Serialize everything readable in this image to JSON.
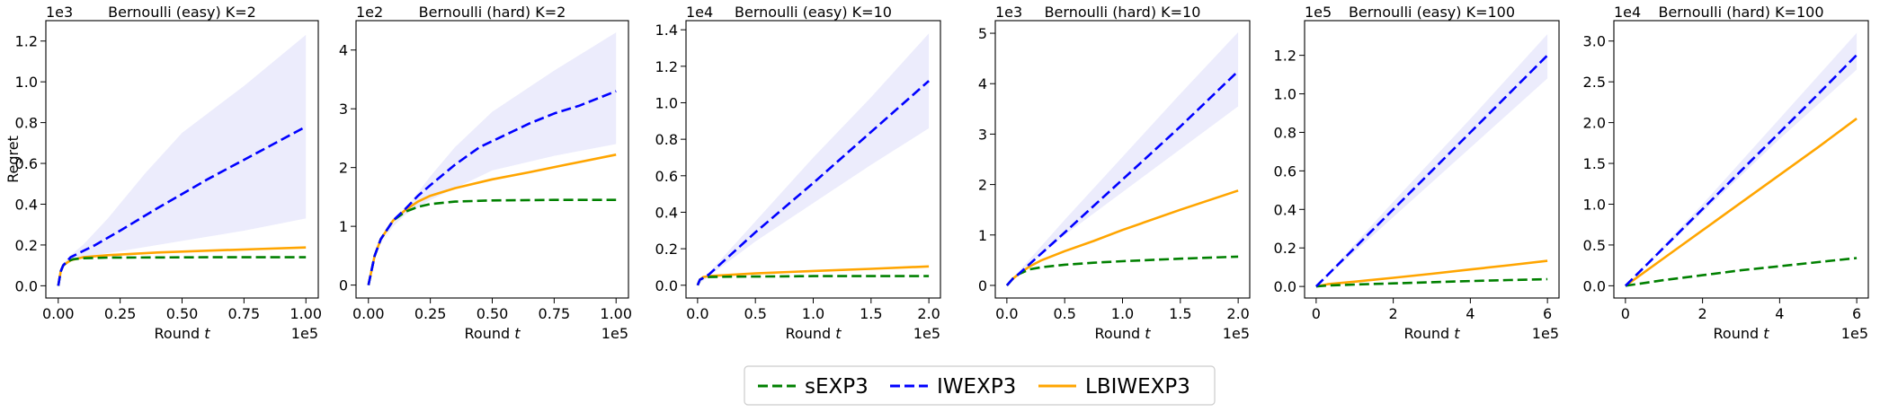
{
  "legend": {
    "placement": "bottom-center",
    "entries": [
      {
        "name": "sEXP3",
        "color": "#008000",
        "dashed": true
      },
      {
        "name": "IWEXP3",
        "color": "#0000ff",
        "dashed": true
      },
      {
        "name": "LBIWEXP3",
        "color": "#ffa500",
        "dashed": false
      }
    ]
  },
  "colors": {
    "band": "#ececfc",
    "green": "#008000",
    "blue": "#0000ff",
    "orange": "#ffa500"
  },
  "chart_data": [
    {
      "type": "line",
      "title": "Bernoulli (easy) K=2",
      "xlabel": "Round t",
      "ylabel": "Regret",
      "x_exponent": "1e5",
      "y_exponent": "1e3",
      "xlim": [
        -0.05,
        1.05
      ],
      "ylim": [
        -0.06,
        1.3
      ],
      "xticks": [
        0.0,
        0.25,
        0.5,
        0.75,
        1.0
      ],
      "xticklabels": [
        "0.00",
        "0.25",
        "0.50",
        "0.75",
        "1.00"
      ],
      "yticks": [
        0.0,
        0.2,
        0.4,
        0.6,
        0.8,
        1.0,
        1.2
      ],
      "yticklabels": [
        "0.0",
        "0.2",
        "0.4",
        "0.6",
        "0.8",
        "1.0",
        "1.2"
      ],
      "grid": false,
      "band": {
        "series": "IWEXP3",
        "x": [
          0,
          0.02,
          0.05,
          0.1,
          0.2,
          0.35,
          0.5,
          0.75,
          1.0
        ],
        "upper": [
          0.05,
          0.11,
          0.15,
          0.2,
          0.33,
          0.55,
          0.75,
          0.98,
          1.23
        ],
        "lower": [
          0.05,
          0.09,
          0.12,
          0.14,
          0.16,
          0.19,
          0.22,
          0.27,
          0.33
        ]
      },
      "series": [
        {
          "name": "sEXP3",
          "x": [
            0,
            0.01,
            0.02,
            0.04,
            0.06,
            0.1,
            0.2,
            0.4,
            0.6,
            0.8,
            1.0
          ],
          "values": [
            0.0,
            0.07,
            0.1,
            0.12,
            0.13,
            0.135,
            0.138,
            0.139,
            0.14,
            0.14,
            0.14
          ]
        },
        {
          "name": "IWEXP3",
          "x": [
            0,
            0.01,
            0.02,
            0.05,
            0.1,
            0.15,
            0.25,
            0.4,
            0.6,
            0.8,
            1.0
          ],
          "values": [
            0.0,
            0.07,
            0.1,
            0.14,
            0.17,
            0.2,
            0.27,
            0.38,
            0.52,
            0.65,
            0.78
          ]
        },
        {
          "name": "LBIWEXP3",
          "x": [
            0,
            0.01,
            0.02,
            0.05,
            0.1,
            0.2,
            0.4,
            0.6,
            0.8,
            1.0
          ],
          "values": [
            0.0,
            0.07,
            0.1,
            0.125,
            0.14,
            0.15,
            0.163,
            0.172,
            0.18,
            0.188
          ]
        }
      ]
    },
    {
      "type": "line",
      "title": "Bernoulli (hard) K=2",
      "xlabel": "Round t",
      "ylabel": "",
      "x_exponent": "1e5",
      "y_exponent": "1e2",
      "xlim": [
        -0.05,
        1.05
      ],
      "ylim": [
        -0.22,
        4.5
      ],
      "xticks": [
        0.0,
        0.25,
        0.5,
        0.75,
        1.0
      ],
      "xticklabels": [
        "0.00",
        "0.25",
        "0.50",
        "0.75",
        "1.00"
      ],
      "yticks": [
        0,
        1,
        2,
        3,
        4
      ],
      "yticklabels": [
        "0",
        "1",
        "2",
        "3",
        "4"
      ],
      "grid": false,
      "band": {
        "series": "IWEXP3",
        "x": [
          0,
          0.05,
          0.1,
          0.15,
          0.25,
          0.35,
          0.5,
          0.75,
          1.0
        ],
        "upper": [
          0.0,
          0.7,
          1.05,
          1.3,
          1.85,
          2.35,
          2.95,
          3.65,
          4.3
        ],
        "lower": [
          0.0,
          0.7,
          1.0,
          1.2,
          1.45,
          1.65,
          1.95,
          2.2,
          2.4
        ]
      },
      "series": [
        {
          "name": "sEXP3",
          "x": [
            0,
            0.025,
            0.05,
            0.1,
            0.15,
            0.2,
            0.25,
            0.35,
            0.5,
            0.75,
            1.0
          ],
          "values": [
            0.0,
            0.5,
            0.78,
            1.1,
            1.25,
            1.33,
            1.38,
            1.42,
            1.44,
            1.45,
            1.45
          ]
        },
        {
          "name": "IWEXP3",
          "x": [
            0,
            0.025,
            0.05,
            0.1,
            0.15,
            0.2,
            0.25,
            0.35,
            0.45,
            0.55,
            0.65,
            0.75,
            0.85,
            1.0
          ],
          "values": [
            0.0,
            0.5,
            0.78,
            1.1,
            1.3,
            1.52,
            1.7,
            2.05,
            2.35,
            2.55,
            2.75,
            2.92,
            3.05,
            3.3
          ]
        },
        {
          "name": "LBIWEXP3",
          "x": [
            0,
            0.025,
            0.05,
            0.1,
            0.15,
            0.2,
            0.25,
            0.35,
            0.5,
            0.65,
            0.8,
            1.0
          ],
          "values": [
            0.0,
            0.5,
            0.78,
            1.1,
            1.28,
            1.42,
            1.52,
            1.65,
            1.8,
            1.92,
            2.05,
            2.22
          ]
        }
      ]
    },
    {
      "type": "line",
      "title": "Bernoulli (easy) K=10",
      "xlabel": "Round t",
      "ylabel": "",
      "x_exponent": "1e5",
      "y_exponent": "1e4",
      "xlim": [
        -0.1,
        2.1
      ],
      "ylim": [
        -0.07,
        1.45
      ],
      "xticks": [
        0.0,
        0.5,
        1.0,
        1.5,
        2.0
      ],
      "xticklabels": [
        "0.0",
        "0.5",
        "1.0",
        "1.5",
        "2.0"
      ],
      "yticks": [
        0.0,
        0.2,
        0.4,
        0.6,
        0.8,
        1.0,
        1.2,
        1.4
      ],
      "yticklabels": [
        "0.0",
        "0.2",
        "0.4",
        "0.6",
        "0.8",
        "1.0",
        "1.2",
        "1.4"
      ],
      "grid": false,
      "band": {
        "series": "IWEXP3",
        "x": [
          0,
          0.1,
          0.5,
          1.0,
          1.5,
          2.0
        ],
        "upper": [
          0.0,
          0.07,
          0.35,
          0.7,
          1.03,
          1.38
        ],
        "lower": [
          0.0,
          0.05,
          0.24,
          0.45,
          0.66,
          0.86
        ]
      },
      "series": [
        {
          "name": "sEXP3",
          "x": [
            0,
            0.02,
            0.05,
            0.1,
            0.3,
            0.6,
            1.0,
            1.5,
            2.0
          ],
          "values": [
            0.0,
            0.03,
            0.04,
            0.045,
            0.047,
            0.048,
            0.05,
            0.05,
            0.05
          ]
        },
        {
          "name": "IWEXP3",
          "x": [
            0,
            0.02,
            0.05,
            0.1,
            0.5,
            1.0,
            1.5,
            2.0
          ],
          "values": [
            0.0,
            0.03,
            0.04,
            0.06,
            0.29,
            0.56,
            0.84,
            1.12
          ]
        },
        {
          "name": "LBIWEXP3",
          "x": [
            0,
            0.02,
            0.05,
            0.1,
            0.5,
            1.0,
            1.5,
            2.0
          ],
          "values": [
            0.0,
            0.03,
            0.045,
            0.05,
            0.065,
            0.078,
            0.09,
            0.103
          ]
        }
      ]
    },
    {
      "type": "line",
      "title": "Bernoulli (hard) K=10",
      "xlabel": "Round t",
      "ylabel": "",
      "x_exponent": "1e5",
      "y_exponent": "1e3",
      "xlim": [
        -0.1,
        2.1
      ],
      "ylim": [
        -0.25,
        5.25
      ],
      "xticks": [
        0.0,
        0.5,
        1.0,
        1.5,
        2.0
      ],
      "xticklabels": [
        "0.0",
        "0.5",
        "1.0",
        "1.5",
        "2.0"
      ],
      "yticks": [
        0,
        1,
        2,
        3,
        4,
        5
      ],
      "yticklabels": [
        "0",
        "1",
        "2",
        "3",
        "4",
        "5"
      ],
      "grid": false,
      "band": {
        "series": "IWEXP3",
        "x": [
          0,
          0.1,
          0.5,
          1.0,
          1.5,
          2.0
        ],
        "upper": [
          0.0,
          0.27,
          1.3,
          2.55,
          3.8,
          5.02
        ],
        "lower": [
          0.0,
          0.22,
          1.0,
          1.85,
          2.7,
          3.55
        ]
      },
      "series": [
        {
          "name": "sEXP3",
          "x": [
            0,
            0.05,
            0.1,
            0.2,
            0.3,
            0.5,
            0.75,
            1.0,
            1.5,
            2.0
          ],
          "values": [
            0.0,
            0.13,
            0.22,
            0.32,
            0.36,
            0.41,
            0.45,
            0.48,
            0.53,
            0.57
          ]
        },
        {
          "name": "IWEXP3",
          "x": [
            0,
            0.05,
            0.1,
            0.2,
            0.5,
            1.0,
            1.5,
            2.0
          ],
          "values": [
            0.0,
            0.13,
            0.22,
            0.43,
            1.05,
            2.1,
            3.15,
            4.25
          ]
        },
        {
          "name": "LBIWEXP3",
          "x": [
            0,
            0.05,
            0.1,
            0.2,
            0.3,
            0.5,
            0.75,
            1.0,
            1.5,
            2.0
          ],
          "values": [
            0.0,
            0.13,
            0.22,
            0.38,
            0.5,
            0.68,
            0.88,
            1.1,
            1.5,
            1.88
          ]
        }
      ]
    },
    {
      "type": "line",
      "title": "Bernoulli (easy) K=100",
      "xlabel": "Round t",
      "ylabel": "",
      "x_exponent": "1e5",
      "y_exponent": "1e5",
      "xlim": [
        -0.3,
        6.3
      ],
      "ylim": [
        -0.06,
        1.38
      ],
      "xticks": [
        0,
        2,
        4,
        6
      ],
      "xticklabels": [
        "0",
        "2",
        "4",
        "6"
      ],
      "yticks": [
        0.0,
        0.2,
        0.4,
        0.6,
        0.8,
        1.0,
        1.2
      ],
      "yticklabels": [
        "0.0",
        "0.2",
        "0.4",
        "0.6",
        "0.8",
        "1.0",
        "1.2"
      ],
      "grid": false,
      "band": {
        "series": "IWEXP3",
        "x": [
          0,
          2,
          4,
          6
        ],
        "upper": [
          0.0,
          0.44,
          0.87,
          1.31
        ],
        "lower": [
          0.0,
          0.36,
          0.72,
          1.08
        ]
      },
      "series": [
        {
          "name": "sEXP3",
          "x": [
            0,
            0.3,
            1,
            2,
            3,
            4,
            5,
            6
          ],
          "values": [
            0.0,
            0.005,
            0.01,
            0.016,
            0.022,
            0.028,
            0.033,
            0.038
          ]
        },
        {
          "name": "IWEXP3",
          "x": [
            0,
            1,
            2,
            3,
            4,
            5,
            6
          ],
          "values": [
            0.0,
            0.2,
            0.4,
            0.6,
            0.8,
            1.0,
            1.2
          ]
        },
        {
          "name": "LBIWEXP3",
          "x": [
            0,
            0.3,
            1,
            2,
            3,
            4,
            5,
            6
          ],
          "values": [
            0.0,
            0.012,
            0.025,
            0.045,
            0.066,
            0.088,
            0.11,
            0.133
          ]
        }
      ]
    },
    {
      "type": "line",
      "title": "Bernoulli (hard) K=100",
      "xlabel": "Round t",
      "ylabel": "",
      "x_exponent": "1e5",
      "y_exponent": "1e4",
      "xlim": [
        -0.3,
        6.3
      ],
      "ylim": [
        -0.15,
        3.25
      ],
      "xticks": [
        0,
        2,
        4,
        6
      ],
      "xticklabels": [
        "0",
        "2",
        "4",
        "6"
      ],
      "yticks": [
        0.0,
        0.5,
        1.0,
        1.5,
        2.0,
        2.5,
        3.0
      ],
      "yticklabels": [
        "0.0",
        "0.5",
        "1.0",
        "1.5",
        "2.0",
        "2.5",
        "3.0"
      ],
      "grid": false,
      "band": {
        "series": "IWEXP3",
        "x": [
          0,
          2,
          4,
          6
        ],
        "upper": [
          0.0,
          1.0,
          2.05,
          3.1
        ],
        "lower": [
          0.0,
          0.9,
          1.8,
          2.65
        ]
      },
      "series": [
        {
          "name": "sEXP3",
          "x": [
            0,
            1,
            2,
            3,
            4,
            5,
            6
          ],
          "values": [
            0.0,
            0.07,
            0.13,
            0.19,
            0.24,
            0.29,
            0.34
          ]
        },
        {
          "name": "IWEXP3",
          "x": [
            0,
            1,
            2,
            3,
            4,
            5,
            6
          ],
          "values": [
            0.0,
            0.47,
            0.94,
            1.41,
            1.88,
            2.35,
            2.83
          ]
        },
        {
          "name": "LBIWEXP3",
          "x": [
            0,
            1,
            2,
            3,
            4,
            5,
            6
          ],
          "values": [
            0.0,
            0.34,
            0.68,
            1.02,
            1.36,
            1.7,
            2.05
          ]
        }
      ]
    }
  ]
}
